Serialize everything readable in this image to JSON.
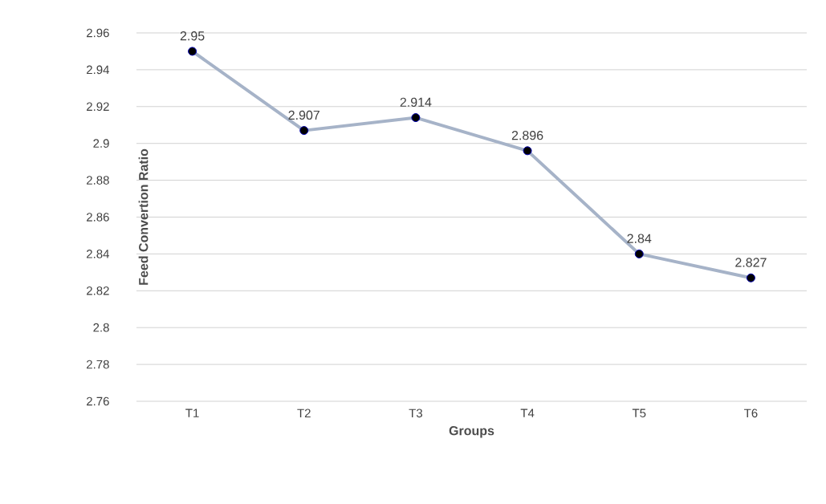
{
  "chart_data": {
    "type": "line",
    "xlabel": "Groups",
    "ylabel": "Feed Convertion Ratio",
    "categories": [
      "T1",
      "T2",
      "T3",
      "T4",
      "T5",
      "T6"
    ],
    "values": [
      2.95,
      2.907,
      2.914,
      2.896,
      2.84,
      2.827
    ],
    "color": "#a6b3c8",
    "ylim": [
      2.76,
      2.96
    ],
    "yticks": [
      2.76,
      2.78,
      2.8,
      2.82,
      2.84,
      2.86,
      2.88,
      2.9,
      2.92,
      2.94,
      2.96
    ],
    "grid": "y",
    "marker": "circle",
    "line_style": "solid",
    "data_labels": true
  }
}
